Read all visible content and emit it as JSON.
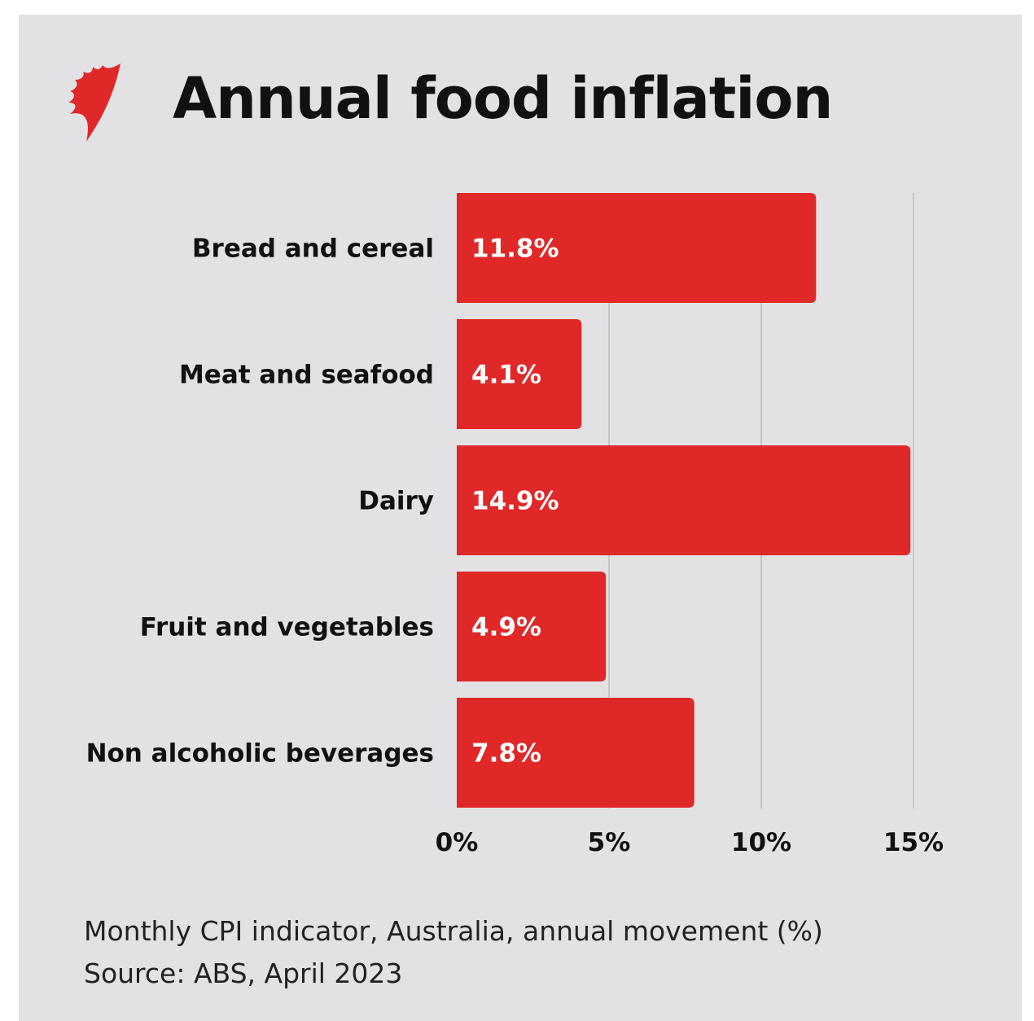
{
  "title": "Annual food inflation",
  "logo": "SBS mark",
  "colors": {
    "bar": "#e02828",
    "background": "#e2e2e4",
    "grid": "#bdbdbf"
  },
  "chart_data": {
    "type": "bar",
    "orientation": "horizontal",
    "title": "Annual food inflation",
    "categories": [
      "Bread and cereal",
      "Meat and seafood",
      "Dairy",
      "Fruit and vegetables",
      "Non alcoholic beverages"
    ],
    "values": [
      11.8,
      4.1,
      14.9,
      4.9,
      7.8
    ],
    "data_labels": [
      "11.8%",
      "4.1%",
      "14.9%",
      "4.9%",
      "7.8%"
    ],
    "xticks": [
      0,
      5,
      10,
      15
    ],
    "xtick_labels": [
      "0%",
      "5%",
      "10%",
      "15%"
    ],
    "xlim": [
      0,
      15
    ],
    "grid": true,
    "xlabel": "",
    "ylabel": ""
  },
  "footer": {
    "line1": "Monthly CPI indicator, Australia, annual movement (%)",
    "line2": "Source: ABS, April 2023"
  }
}
